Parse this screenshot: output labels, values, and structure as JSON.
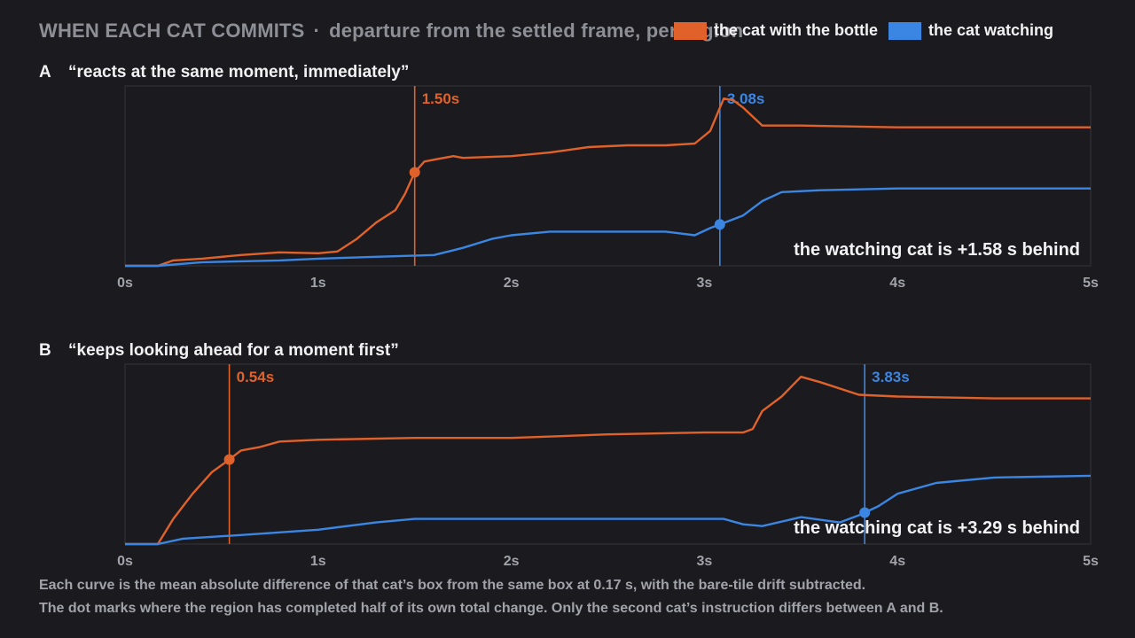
{
  "header": {
    "title": "WHEN EACH CAT COMMITS",
    "separator": "·",
    "subtitle": "departure from the settled frame, per region"
  },
  "legend": [
    {
      "label": "the cat with the bottle",
      "color": "#e0622a"
    },
    {
      "label": "the cat watching",
      "color": "#3b86e3"
    }
  ],
  "footnotes": [
    "Each curve is the mean absolute difference of that cat’s box from the same box at 0.17 s, with the bare-tile drift subtracted.",
    "The dot marks where the region has completed half of its own total change. Only the second cat’s instruction differs between A and B."
  ],
  "chart_data": [
    {
      "type": "line",
      "panel_letter": "A",
      "title": "“reacts at the same moment, immediately”",
      "xlim": [
        0,
        5
      ],
      "ylim": [
        0,
        1
      ],
      "x_ticks": [
        "0s",
        "1s",
        "2s",
        "3s",
        "4s",
        "5s"
      ],
      "annotation": "the watching cat is +1.58 s behind",
      "series": [
        {
          "name": "the cat with the bottle",
          "color": "#e0622a",
          "halfway_time": 1.5,
          "halfway_label": "1.50s",
          "x": [
            0,
            0.17,
            0.25,
            0.4,
            0.6,
            0.8,
            1.0,
            1.1,
            1.2,
            1.3,
            1.4,
            1.45,
            1.5,
            1.55,
            1.6,
            1.7,
            1.75,
            2.0,
            2.2,
            2.4,
            2.6,
            2.8,
            2.95,
            3.03,
            3.1,
            3.15,
            3.2,
            3.3,
            3.5,
            4.0,
            4.5,
            5.0
          ],
          "y": [
            0,
            0,
            0.03,
            0.04,
            0.06,
            0.075,
            0.07,
            0.08,
            0.15,
            0.24,
            0.31,
            0.4,
            0.52,
            0.58,
            0.59,
            0.61,
            0.6,
            0.61,
            0.63,
            0.66,
            0.67,
            0.67,
            0.68,
            0.75,
            0.93,
            0.92,
            0.88,
            0.78,
            0.78,
            0.77,
            0.77,
            0.77
          ]
        },
        {
          "name": "the cat watching",
          "color": "#3b86e3",
          "halfway_time": 3.08,
          "halfway_label": "3.08s",
          "x": [
            0,
            0.17,
            0.4,
            0.8,
            1.0,
            1.3,
            1.6,
            1.75,
            1.9,
            2.0,
            2.2,
            2.5,
            2.8,
            2.95,
            3.03,
            3.08,
            3.2,
            3.3,
            3.4,
            3.6,
            4.0,
            4.5,
            5.0
          ],
          "y": [
            0,
            0,
            0.02,
            0.03,
            0.04,
            0.05,
            0.06,
            0.1,
            0.15,
            0.17,
            0.19,
            0.19,
            0.19,
            0.17,
            0.21,
            0.23,
            0.28,
            0.36,
            0.41,
            0.42,
            0.43,
            0.43,
            0.43
          ]
        }
      ]
    },
    {
      "type": "line",
      "panel_letter": "B",
      "title": "“keeps looking ahead for a moment first”",
      "xlim": [
        0,
        5
      ],
      "ylim": [
        0,
        1
      ],
      "x_ticks": [
        "0s",
        "1s",
        "2s",
        "3s",
        "4s",
        "5s"
      ],
      "annotation": "the watching cat is +3.29 s behind",
      "series": [
        {
          "name": "the cat with the bottle",
          "color": "#e0622a",
          "halfway_time": 0.54,
          "halfway_label": "0.54s",
          "x": [
            0,
            0.17,
            0.25,
            0.35,
            0.45,
            0.54,
            0.6,
            0.7,
            0.8,
            1.0,
            1.5,
            2.0,
            2.5,
            3.0,
            3.2,
            3.25,
            3.3,
            3.4,
            3.5,
            3.6,
            3.8,
            4.0,
            4.5,
            5.0
          ],
          "y": [
            0,
            0,
            0.14,
            0.28,
            0.4,
            0.47,
            0.52,
            0.54,
            0.57,
            0.58,
            0.59,
            0.59,
            0.61,
            0.62,
            0.62,
            0.64,
            0.74,
            0.82,
            0.93,
            0.9,
            0.83,
            0.82,
            0.81,
            0.81
          ]
        },
        {
          "name": "the cat watching",
          "color": "#3b86e3",
          "halfway_time": 3.83,
          "halfway_label": "3.83s",
          "x": [
            0,
            0.17,
            0.3,
            0.6,
            1.0,
            1.3,
            1.5,
            2.0,
            2.5,
            3.0,
            3.1,
            3.2,
            3.3,
            3.5,
            3.7,
            3.8,
            3.9,
            4.0,
            4.2,
            4.5,
            5.0
          ],
          "y": [
            0,
            0,
            0.03,
            0.05,
            0.08,
            0.12,
            0.14,
            0.14,
            0.14,
            0.14,
            0.14,
            0.11,
            0.1,
            0.15,
            0.12,
            0.16,
            0.21,
            0.28,
            0.34,
            0.37,
            0.38
          ]
        }
      ]
    }
  ]
}
